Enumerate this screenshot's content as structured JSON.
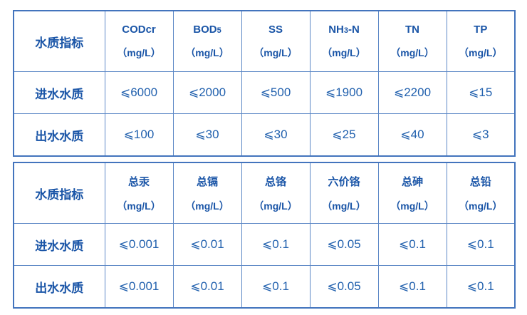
{
  "colors": {
    "background": "#ffffff",
    "text_strong": "#1a55a7",
    "text_value": "#2261ae",
    "grid_line": "#5d88c6",
    "outer_border": "#4374bd"
  },
  "tables": [
    {
      "row_header": "水质指标",
      "columns": [
        {
          "pre": "CODcr",
          "sub": "",
          "post": "",
          "unit": "（mg/L）"
        },
        {
          "pre": "BOD",
          "sub": "5",
          "post": "",
          "unit": "（mg/L）"
        },
        {
          "pre": "SS",
          "sub": "",
          "post": "",
          "unit": "（mg/L）"
        },
        {
          "pre": "NH",
          "sub": "3",
          "post": "-N",
          "unit": "（mg/L）"
        },
        {
          "pre": "TN",
          "sub": "",
          "post": "",
          "unit": "（mg/L）"
        },
        {
          "pre": "TP",
          "sub": "",
          "post": "",
          "unit": "（mg/L）"
        }
      ],
      "rows": [
        {
          "label": "进水水质",
          "values": [
            "⩽6000",
            "⩽2000",
            "⩽500",
            "⩽1900",
            "⩽2200",
            "⩽15"
          ]
        },
        {
          "label": "出水水质",
          "values": [
            "⩽100",
            "⩽30",
            "⩽30",
            "⩽25",
            "⩽40",
            "⩽3"
          ]
        }
      ]
    },
    {
      "row_header": "水质指标",
      "columns": [
        {
          "pre": "总汞",
          "sub": "",
          "post": "",
          "unit": "（mg/L）"
        },
        {
          "pre": "总镉",
          "sub": "",
          "post": "",
          "unit": "（mg/L）"
        },
        {
          "pre": "总铬",
          "sub": "",
          "post": "",
          "unit": "（mg/L）"
        },
        {
          "pre": "六价铬",
          "sub": "",
          "post": "",
          "unit": "（mg/L）"
        },
        {
          "pre": "总砷",
          "sub": "",
          "post": "",
          "unit": "（mg/L）"
        },
        {
          "pre": "总铅",
          "sub": "",
          "post": "",
          "unit": "（mg/L）"
        }
      ],
      "rows": [
        {
          "label": "进水水质",
          "values": [
            "⩽0.001",
            "⩽0.01",
            "⩽0.1",
            "⩽0.05",
            "⩽0.1",
            "⩽0.1"
          ]
        },
        {
          "label": "出水水质",
          "values": [
            "⩽0.001",
            "⩽0.01",
            "⩽0.1",
            "⩽0.05",
            "⩽0.1",
            "⩽0.1"
          ]
        }
      ]
    }
  ]
}
